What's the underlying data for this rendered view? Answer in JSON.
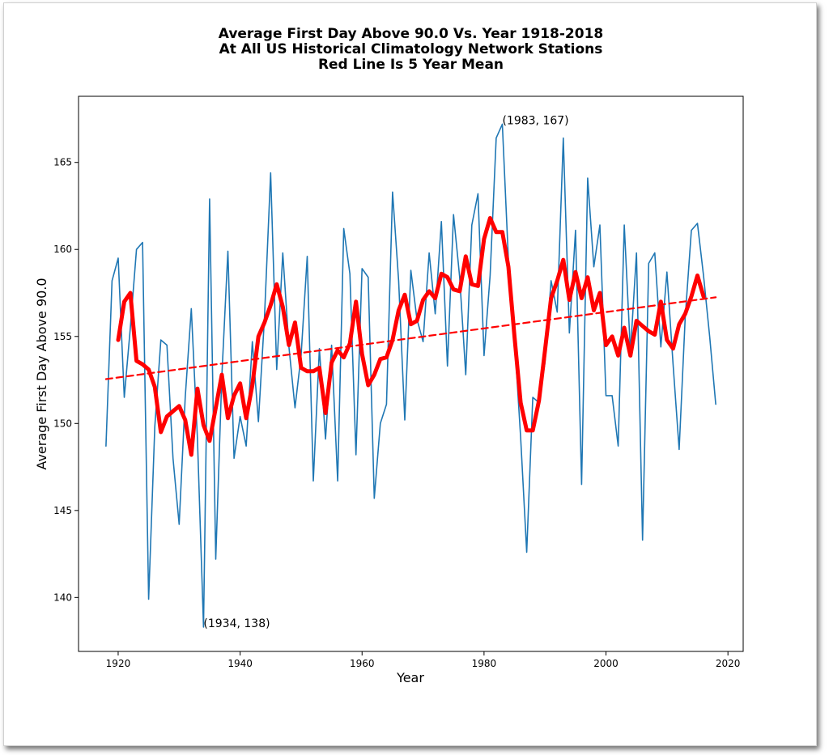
{
  "chart_data": {
    "type": "line",
    "title_lines": [
      "Average First Day Above 90.0 Vs. Year 1918-2018",
      "At All US Historical Climatology Network Stations",
      "Red Line Is 5 Year Mean"
    ],
    "xlabel": "Year",
    "ylabel": "Average First Day Above 90.0",
    "xlim": [
      1913.5,
      2022.5
    ],
    "ylim": [
      136.9,
      168.8
    ],
    "xticks": [
      1920,
      1940,
      1960,
      1980,
      2000,
      2020
    ],
    "yticks": [
      140,
      145,
      150,
      155,
      160,
      165
    ],
    "grid": false,
    "annotations": [
      {
        "text": "(1983, 167)",
        "x": 1983,
        "y": 167.2
      },
      {
        "text": "(1934, 138)",
        "x": 1934,
        "y": 138.3
      }
    ],
    "series": [
      {
        "role": "annual",
        "color": "#1f77b4",
        "x": [
          1918,
          1919,
          1920,
          1921,
          1922,
          1923,
          1924,
          1925,
          1926,
          1927,
          1928,
          1929,
          1930,
          1931,
          1932,
          1933,
          1934,
          1935,
          1936,
          1937,
          1938,
          1939,
          1940,
          1941,
          1942,
          1943,
          1944,
          1945,
          1946,
          1947,
          1948,
          1949,
          1950,
          1951,
          1952,
          1953,
          1954,
          1955,
          1956,
          1957,
          1958,
          1959,
          1960,
          1961,
          1962,
          1963,
          1964,
          1965,
          1966,
          1967,
          1968,
          1969,
          1970,
          1971,
          1972,
          1973,
          1974,
          1975,
          1976,
          1977,
          1978,
          1979,
          1980,
          1981,
          1982,
          1983,
          1984,
          1985,
          1986,
          1987,
          1988,
          1989,
          1990,
          1991,
          1992,
          1993,
          1994,
          1995,
          1996,
          1997,
          1998,
          1999,
          2000,
          2001,
          2002,
          2003,
          2004,
          2005,
          2006,
          2007,
          2008,
          2009,
          2010,
          2011,
          2012,
          2013,
          2014,
          2015,
          2016,
          2017,
          2018
        ],
        "y": [
          148.7,
          158.2,
          159.5,
          151.5,
          155.5,
          160.0,
          160.4,
          139.9,
          149.8,
          154.8,
          154.5,
          148.0,
          144.2,
          151.5,
          156.6,
          149.1,
          138.3,
          162.9,
          142.2,
          152.7,
          159.9,
          148.0,
          150.4,
          148.7,
          154.7,
          150.1,
          156.1,
          164.4,
          153.1,
          159.8,
          154.4,
          150.9,
          153.9,
          159.6,
          146.7,
          154.3,
          149.1,
          154.5,
          146.7,
          161.2,
          158.6,
          148.2,
          158.9,
          158.4,
          145.7,
          150.0,
          151.1,
          163.3,
          158.2,
          150.2,
          158.8,
          156.0,
          154.7,
          159.8,
          156.3,
          161.6,
          153.3,
          162.0,
          158.4,
          152.8,
          161.4,
          163.2,
          153.9,
          158.5,
          166.4,
          167.2,
          159.4,
          154.9,
          149.2,
          142.6,
          151.5,
          151.2,
          153.5,
          158.2,
          156.4,
          166.4,
          155.2,
          161.1,
          146.5,
          164.1,
          159.0,
          161.4,
          151.6,
          151.6,
          148.7,
          161.4,
          154.1,
          159.8,
          143.3,
          159.2,
          159.8,
          154.4,
          158.7,
          153.4,
          148.5,
          156.1,
          161.1,
          161.5,
          158.5,
          155.0,
          151.1
        ]
      },
      {
        "role": "5-year mean",
        "color": "#ff0000",
        "x": [
          1920,
          1921,
          1922,
          1923,
          1924,
          1925,
          1926,
          1927,
          1928,
          1929,
          1930,
          1931,
          1932,
          1933,
          1934,
          1935,
          1936,
          1937,
          1938,
          1939,
          1940,
          1941,
          1942,
          1943,
          1944,
          1945,
          1946,
          1947,
          1948,
          1949,
          1950,
          1951,
          1952,
          1953,
          1954,
          1955,
          1956,
          1957,
          1958,
          1959,
          1960,
          1961,
          1962,
          1963,
          1964,
          1965,
          1966,
          1967,
          1968,
          1969,
          1970,
          1971,
          1972,
          1973,
          1974,
          1975,
          1976,
          1977,
          1978,
          1979,
          1980,
          1981,
          1982,
          1983,
          1984,
          1985,
          1986,
          1987,
          1988,
          1989,
          1990,
          1991,
          1992,
          1993,
          1994,
          1995,
          1996,
          1997,
          1998,
          1999,
          2000,
          2001,
          2002,
          2003,
          2004,
          2005,
          2006,
          2007,
          2008,
          2009,
          2010,
          2011,
          2012,
          2013,
          2014,
          2015,
          2016
        ],
        "y": [
          154.8,
          157.0,
          157.5,
          153.6,
          153.4,
          153.1,
          152.1,
          149.5,
          150.4,
          150.7,
          151.0,
          150.2,
          148.2,
          152.0,
          149.9,
          149.0,
          150.9,
          152.8,
          150.3,
          151.6,
          152.3,
          150.3,
          152.2,
          155.0,
          155.8,
          156.8,
          158.0,
          156.7,
          154.5,
          155.8,
          153.2,
          153.0,
          153.0,
          153.2,
          150.6,
          153.5,
          154.2,
          153.8,
          154.6,
          157.0,
          154.0,
          152.2,
          152.8,
          153.7,
          153.8,
          154.8,
          156.5,
          157.4,
          155.7,
          155.9,
          157.1,
          157.6,
          157.2,
          158.6,
          158.4,
          157.7,
          157.6,
          159.6,
          158.0,
          157.9,
          160.6,
          161.8,
          161.0,
          161.0,
          159.0,
          155.0,
          151.2,
          149.6,
          149.6,
          151.3,
          154.2,
          157.2,
          158.2,
          159.4,
          157.1,
          158.7,
          157.2,
          158.4,
          156.5,
          157.5,
          154.5,
          155.0,
          153.9,
          155.5,
          153.9,
          155.9,
          155.6,
          155.3,
          155.1,
          157.0,
          154.8,
          154.3,
          155.7,
          156.3,
          157.3,
          158.5,
          157.3
        ]
      },
      {
        "role": "trend",
        "color": "#ff0000",
        "dashed": true,
        "x": [
          1918,
          2018
        ],
        "y": [
          152.55,
          157.25
        ]
      }
    ]
  }
}
